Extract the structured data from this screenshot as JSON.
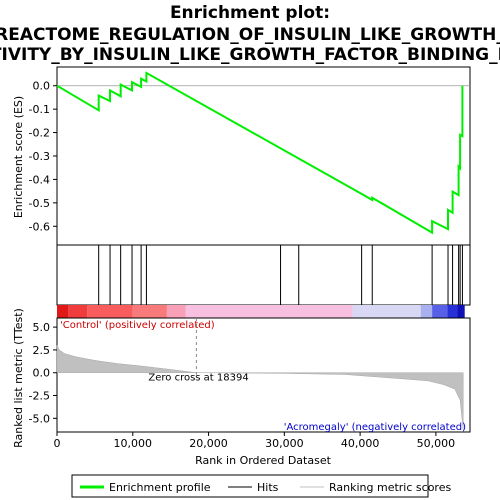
{
  "chart_data": {
    "type": "line",
    "title_lines": [
      "Enrichment plot:",
      "REACTOME_REGULATION_OF_INSULIN_LIKE_GROWTH_",
      "TIVITY_BY_INSULIN_LIKE_GROWTH_FACTOR_BINDING_P"
    ],
    "xlabel": "Rank in Ordered Dataset",
    "es_panel": {
      "ylabel": "Enrichment score (ES)",
      "ylim": [
        -0.68,
        0.08
      ],
      "yticks": [
        0.0,
        -0.1,
        -0.2,
        -0.3,
        -0.4,
        -0.5,
        -0.6
      ],
      "ytick_labels": [
        "0.0",
        "-0.1",
        "-0.2",
        "-0.3",
        "-0.4",
        "-0.5",
        "-0.6"
      ],
      "color": "#00ee00",
      "points": [
        [
          0,
          0.0
        ],
        [
          5500,
          -0.105
        ],
        [
          5500,
          -0.042
        ],
        [
          7000,
          -0.065
        ],
        [
          7000,
          -0.02
        ],
        [
          8400,
          -0.045
        ],
        [
          8400,
          0.005
        ],
        [
          9900,
          -0.02
        ],
        [
          9900,
          0.015
        ],
        [
          11100,
          -0.005
        ],
        [
          11100,
          0.03
        ],
        [
          11800,
          0.018
        ],
        [
          11800,
          0.055
        ],
        [
          40200,
          -0.462
        ],
        [
          41600,
          -0.488
        ],
        [
          41600,
          -0.478
        ],
        [
          49500,
          -0.627
        ],
        [
          49500,
          -0.578
        ],
        [
          51600,
          -0.612
        ],
        [
          51600,
          -0.53
        ],
        [
          52200,
          -0.542
        ],
        [
          52200,
          -0.452
        ],
        [
          53000,
          -0.467
        ],
        [
          53000,
          -0.345
        ],
        [
          53200,
          -0.352
        ],
        [
          53200,
          -0.21
        ],
        [
          53500,
          -0.215
        ],
        [
          53500,
          0.0
        ]
      ]
    },
    "hits": [
      5500,
      7000,
      8400,
      9900,
      11100,
      11800,
      29500,
      31900,
      40200,
      41600,
      49500,
      51600,
      52200,
      53000,
      53200,
      53500
    ],
    "metric_panel": {
      "ylabel": "Ranked list metric (TTest)",
      "ylim": [
        -6.5,
        6.0
      ],
      "yticks": [
        5.0,
        2.5,
        0.0,
        -2.5,
        -5.0
      ],
      "ytick_labels": [
        "5.0",
        "2.5",
        "0.0",
        "-2.5",
        "-5.0"
      ],
      "zero_cross_rank": 18394,
      "zero_cross_label": "Zero cross at 18394",
      "positive_label": "'Control' (positively correlated)",
      "negative_label": "'Acromegaly' (negatively correlated)",
      "profile": [
        [
          0,
          3.0
        ],
        [
          300,
          2.5
        ],
        [
          1000,
          2.1
        ],
        [
          2500,
          1.75
        ],
        [
          5000,
          1.35
        ],
        [
          8000,
          1.0
        ],
        [
          11000,
          0.75
        ],
        [
          14000,
          0.45
        ],
        [
          16000,
          0.25
        ],
        [
          18394,
          0.0
        ],
        [
          30000,
          -0.08
        ],
        [
          38000,
          -0.2
        ],
        [
          42000,
          -0.45
        ],
        [
          46000,
          -0.7
        ],
        [
          49000,
          -0.9
        ],
        [
          51000,
          -1.3
        ],
        [
          52500,
          -1.8
        ],
        [
          53200,
          -3.0
        ],
        [
          53600,
          -6.3
        ]
      ]
    },
    "xlim": [
      0,
      54500
    ],
    "xticks": [
      0,
      10000,
      20000,
      30000,
      40000,
      50000
    ],
    "xtick_labels": [
      "0",
      "10,000",
      "20,000",
      "30,000",
      "40,000",
      "50,000"
    ],
    "legend": [
      {
        "label": "Enrichment profile",
        "color": "#00ee00"
      },
      {
        "label": "Hits",
        "color": "#000000"
      },
      {
        "label": "Ranking metric scores",
        "color": "#c0c0c0"
      }
    ]
  }
}
